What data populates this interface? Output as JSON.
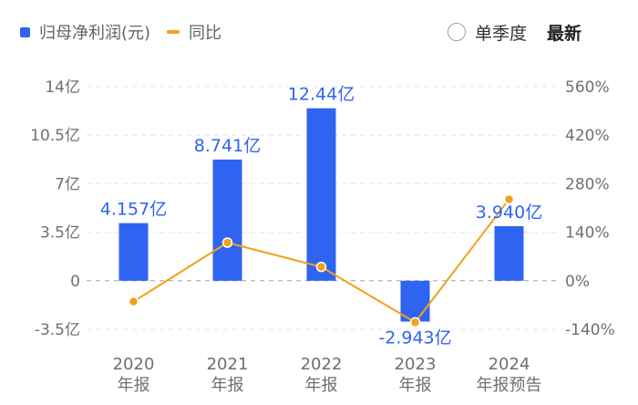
{
  "legend": {
    "bar_label": "归母净利润(元)",
    "line_label": "同比"
  },
  "controls": {
    "quarterly_label": "单季度",
    "latest_label": "最新"
  },
  "colors": {
    "bar": "#2f63f2",
    "line": "#f0a21c",
    "axis_text": "#6b6f76",
    "label_text": "#2f63f2"
  },
  "chart_data": {
    "type": "bar",
    "categories": [
      [
        "2020",
        "年报"
      ],
      [
        "2021",
        "年报"
      ],
      [
        "2022",
        "年报"
      ],
      [
        "2023",
        "年报"
      ],
      [
        "2024",
        "年报预告"
      ]
    ],
    "series": [
      {
        "name": "归母净利润(元)",
        "type": "bar",
        "axis": "left",
        "values": [
          4.157,
          8.741,
          12.44,
          -2.943,
          3.94
        ],
        "labels": [
          "4.157亿",
          "8.741亿",
          "12.44亿",
          "-2.943亿",
          "3.940亿"
        ]
      },
      {
        "name": "同比",
        "type": "line",
        "axis": "right",
        "values": [
          -60,
          110,
          40,
          -120,
          235
        ]
      }
    ],
    "y_left": {
      "ticks": [
        14,
        10.5,
        7,
        3.5,
        0,
        -3.5
      ],
      "tick_labels": [
        "14亿",
        "10.5亿",
        "7亿",
        "3.5亿",
        "0",
        "-3.5亿"
      ],
      "range": [
        -3.5,
        14
      ]
    },
    "y_right": {
      "ticks": [
        560,
        420,
        280,
        140,
        0,
        -140
      ],
      "tick_labels": [
        "560%",
        "420%",
        "280%",
        "140%",
        "0%",
        "-140%"
      ],
      "range": [
        -140,
        560
      ]
    },
    "grid": true
  }
}
